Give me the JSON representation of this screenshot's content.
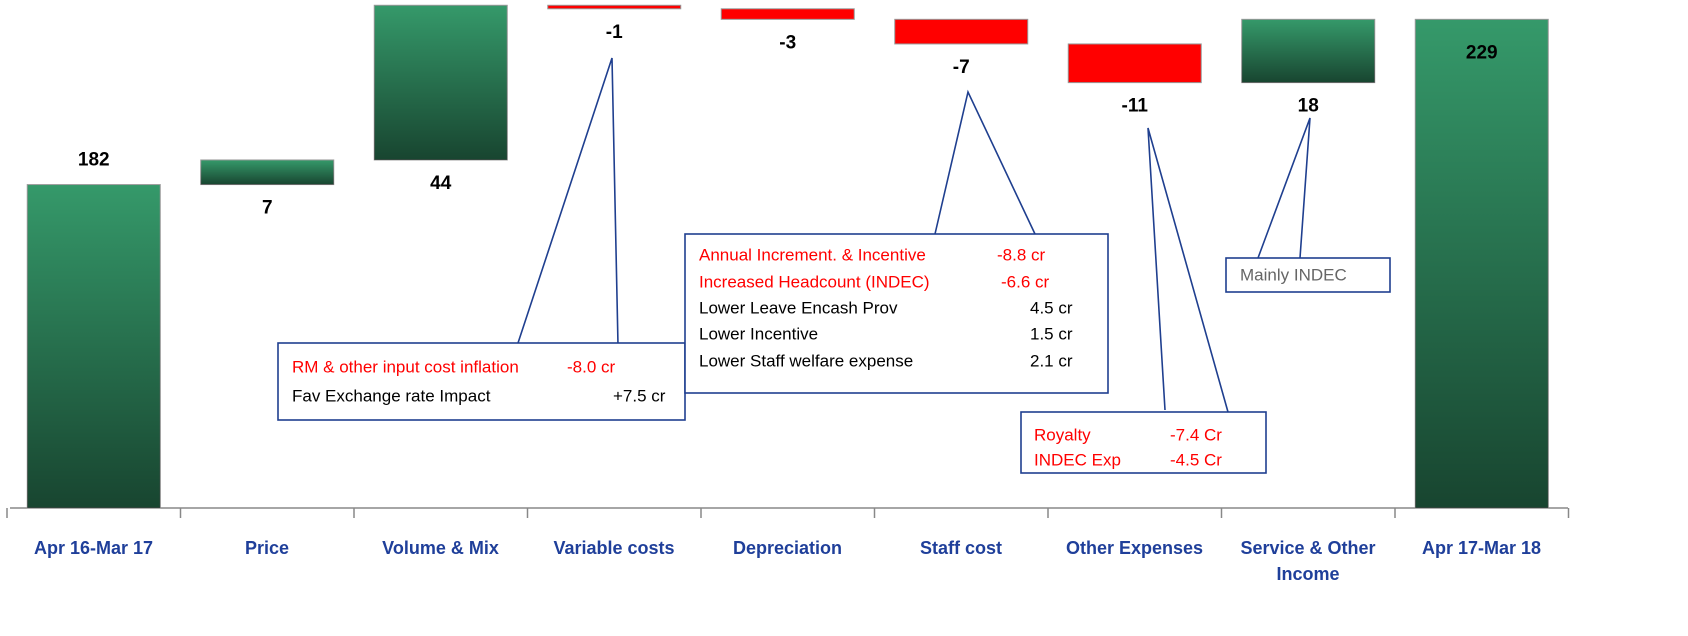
{
  "chart_data": {
    "type": "waterfall",
    "categories": [
      "Apr 16-Mar 17",
      "Price",
      "Volume & Mix",
      "Variable costs",
      "Depreciation",
      "Staff cost",
      "Other Expenses",
      "Service & Other Income",
      "Apr 17-Mar 18"
    ],
    "values": [
      182,
      7,
      44,
      -1,
      -3,
      -7,
      -11,
      18,
      229
    ],
    "measures": [
      "total",
      "relative",
      "relative",
      "relative",
      "relative",
      "relative",
      "relative",
      "relative",
      "total"
    ],
    "increase_color": "#35996a",
    "decrease_color": "#ff0000",
    "total_color": "#35996a",
    "ylim": [
      90,
      234.5
    ],
    "annotations": [
      {
        "lines": [
          {
            "label": "RM & other input cost inflation",
            "amount": "-8.0 cr",
            "color": "#ff0000"
          },
          {
            "label": "Fav Exchange rate Impact",
            "amount": "+7.5 cr",
            "color": "#000000"
          }
        ]
      },
      {
        "lines": [
          {
            "label": "Annual Increment. & Incentive",
            "amount": "-8.8 cr",
            "color": "#ff0000"
          },
          {
            "label": "Increased Headcount (INDEC)",
            "amount": "-6.6 cr",
            "color": "#ff0000"
          },
          {
            "label": "Lower Leave Encash Prov",
            "amount": "4.5 cr",
            "color": "#000000"
          },
          {
            "label": "Lower Incentive",
            "amount": "1.5 cr",
            "color": "#000000"
          },
          {
            "label": "Lower Staff welfare expense",
            "amount": "2.1 cr",
            "color": "#000000"
          }
        ]
      },
      {
        "lines": [
          {
            "label": "Royalty",
            "amount": "-7.4 Cr",
            "color": "#ff0000"
          },
          {
            "label": "INDEC Exp",
            "amount": "-4.5 Cr",
            "color": "#ff0000"
          }
        ]
      },
      {
        "lines": [
          {
            "label": "Mainly INDEC",
            "color": "#666666"
          }
        ]
      }
    ]
  }
}
